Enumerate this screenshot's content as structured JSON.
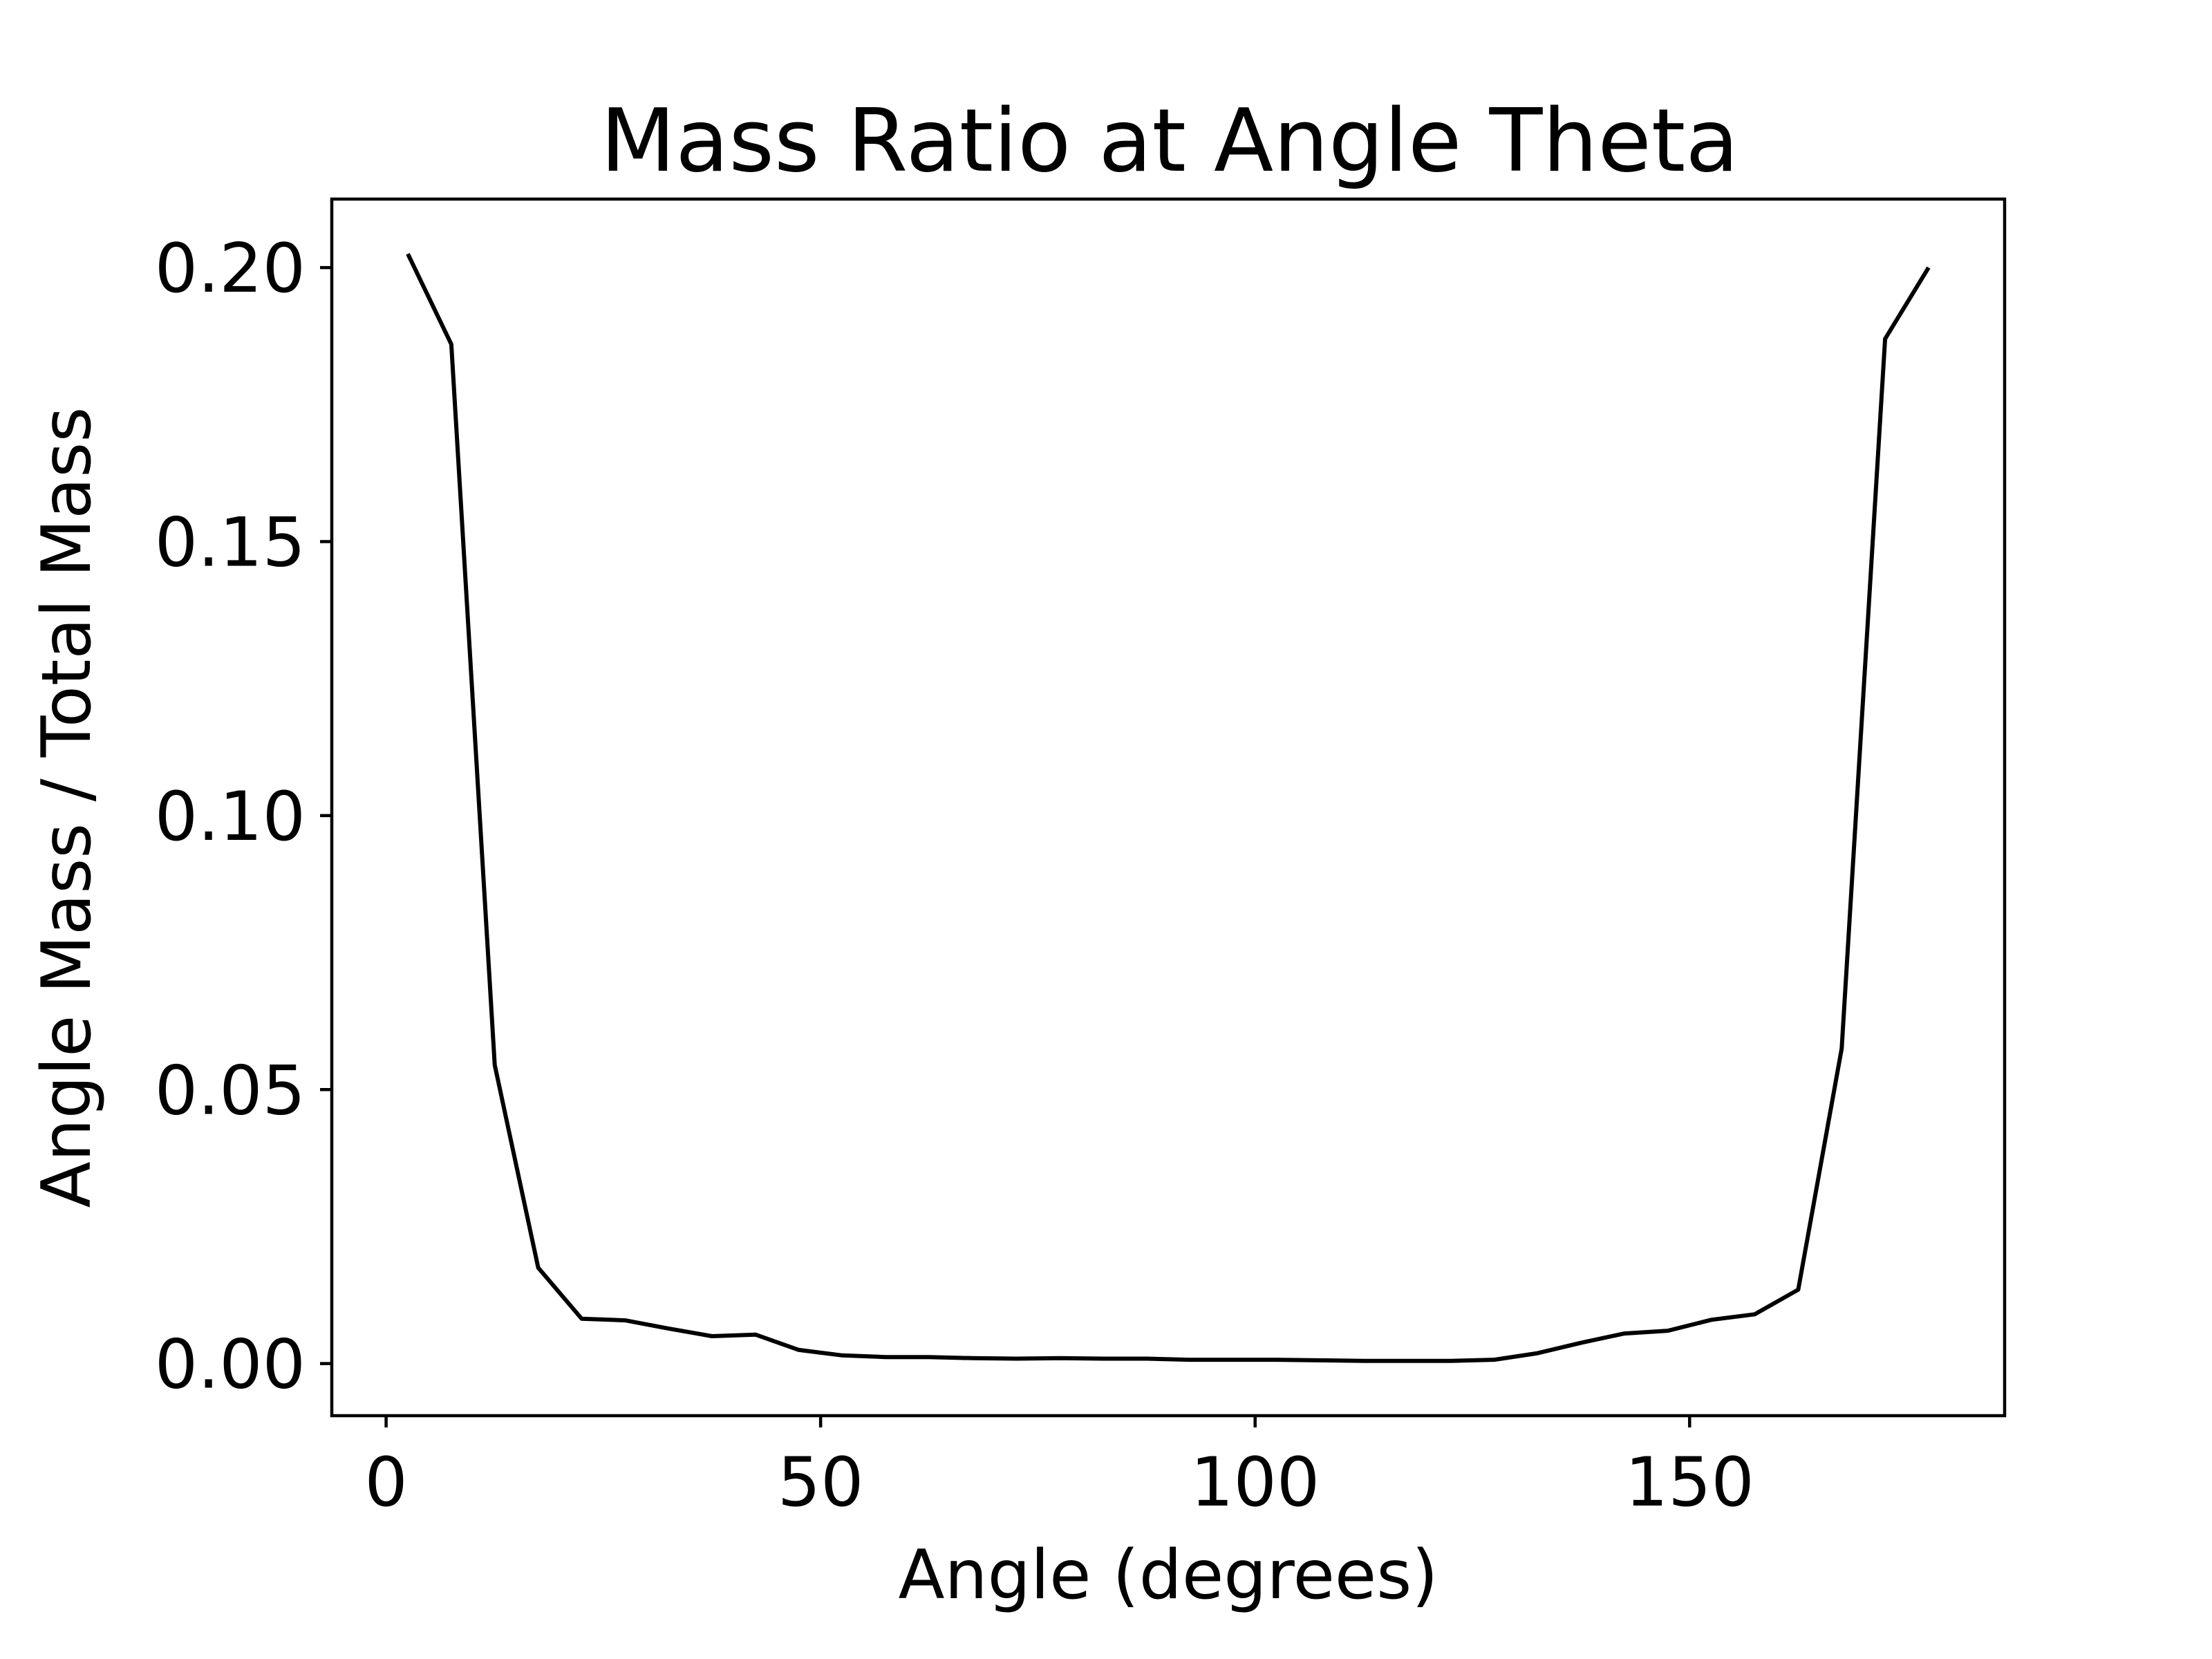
{
  "chart_data": {
    "type": "line",
    "title": "Mass Ratio at Angle Theta",
    "xlabel": "Angle (degrees)",
    "ylabel": "Angle Mass / Total Mass",
    "xlim": [
      -6.25,
      186.25
    ],
    "ylim": [
      -0.0095,
      0.2125
    ],
    "xticks": [
      0,
      50,
      100,
      150
    ],
    "xtick_labels": [
      "0",
      "50",
      "100",
      "150"
    ],
    "yticks": [
      0.0,
      0.05,
      0.1,
      0.15,
      0.2
    ],
    "ytick_labels": [
      "0.00",
      "0.05",
      "0.10",
      "0.15",
      "0.20"
    ],
    "grid": false,
    "line_color": "#000000",
    "series": [
      {
        "x": [
          2.5,
          7.5,
          12.5,
          17.5,
          22.5,
          27.5,
          32.5,
          37.5,
          42.5,
          47.5,
          52.5,
          57.5,
          62.5,
          67.5,
          72.5,
          77.5,
          82.5,
          87.5,
          92.5,
          97.5,
          102.5,
          107.5,
          112.5,
          117.5,
          122.5,
          127.5,
          132.5,
          137.5,
          142.5,
          147.5,
          152.5,
          157.5,
          162.5,
          167.5,
          172.5,
          177.5
        ],
        "values": [
          0.2025,
          0.186,
          0.0545,
          0.0175,
          0.0082,
          0.0079,
          0.0064,
          0.005,
          0.0053,
          0.0025,
          0.0015,
          0.0012,
          0.0012,
          0.001,
          0.0009,
          0.001,
          0.0009,
          0.0009,
          0.0007,
          0.0007,
          0.0007,
          0.0006,
          0.0005,
          0.0005,
          0.0005,
          0.0007,
          0.0019,
          0.0038,
          0.0055,
          0.006,
          0.008,
          0.009,
          0.0135,
          0.0575,
          0.187,
          0.2
        ]
      }
    ]
  }
}
